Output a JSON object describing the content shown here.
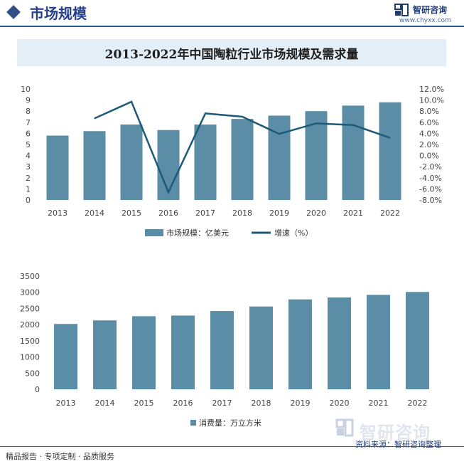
{
  "header": {
    "title": "市场规模"
  },
  "brand": {
    "name": "智研咨询",
    "url": "www.chyxx.com",
    "watermark": "智研咨询"
  },
  "title": "2013-2022年中国陶粒行业市场规模及需求量",
  "colors": {
    "bar": "#5b8ea6",
    "line": "#1d5a7a",
    "accent": "#2c5aa0"
  },
  "footer": {
    "left": "精品报告 · 专项定制 · 品质服务",
    "source": "资料来源：智研咨询整理"
  },
  "chart_data": [
    {
      "type": "bar+line",
      "categories": [
        "2013",
        "2014",
        "2015",
        "2016",
        "2017",
        "2018",
        "2019",
        "2020",
        "2021",
        "2022"
      ],
      "series": [
        {
          "name": "市场规模：亿美元",
          "type": "bar",
          "axis": "left",
          "values": [
            5.8,
            6.2,
            6.8,
            6.3,
            6.8,
            7.3,
            7.6,
            8.0,
            8.5,
            8.8
          ]
        },
        {
          "name": "增速（%）",
          "type": "line",
          "axis": "right",
          "values": [
            null,
            6.7,
            9.7,
            -6.6,
            7.6,
            7.0,
            3.9,
            5.8,
            5.5,
            3.2
          ]
        }
      ],
      "left_axis": {
        "min": 0,
        "max": 10,
        "ticks": [
          "0",
          "1",
          "2",
          "3",
          "4",
          "5",
          "6",
          "7",
          "8",
          "9",
          "10"
        ]
      },
      "right_axis": {
        "min": -8,
        "max": 12,
        "ticks": [
          "-8.0%",
          "-6.0%",
          "-4.0%",
          "-2.0%",
          "0.0%",
          "2.0%",
          "4.0%",
          "6.0%",
          "8.0%",
          "10.0%",
          "12.0%"
        ]
      },
      "legend": "bottom"
    },
    {
      "type": "bar",
      "categories": [
        "2013",
        "2014",
        "2015",
        "2016",
        "2017",
        "2018",
        "2019",
        "2020",
        "2021",
        "2022"
      ],
      "series": [
        {
          "name": "消费量：万立方米",
          "values": [
            2020,
            2130,
            2260,
            2280,
            2420,
            2560,
            2780,
            2840,
            2920,
            3010
          ]
        }
      ],
      "left_axis": {
        "min": 0,
        "max": 3500,
        "ticks": [
          "0",
          "500",
          "1000",
          "1500",
          "2000",
          "2500",
          "3000",
          "3500"
        ]
      },
      "legend": "bottom"
    }
  ]
}
